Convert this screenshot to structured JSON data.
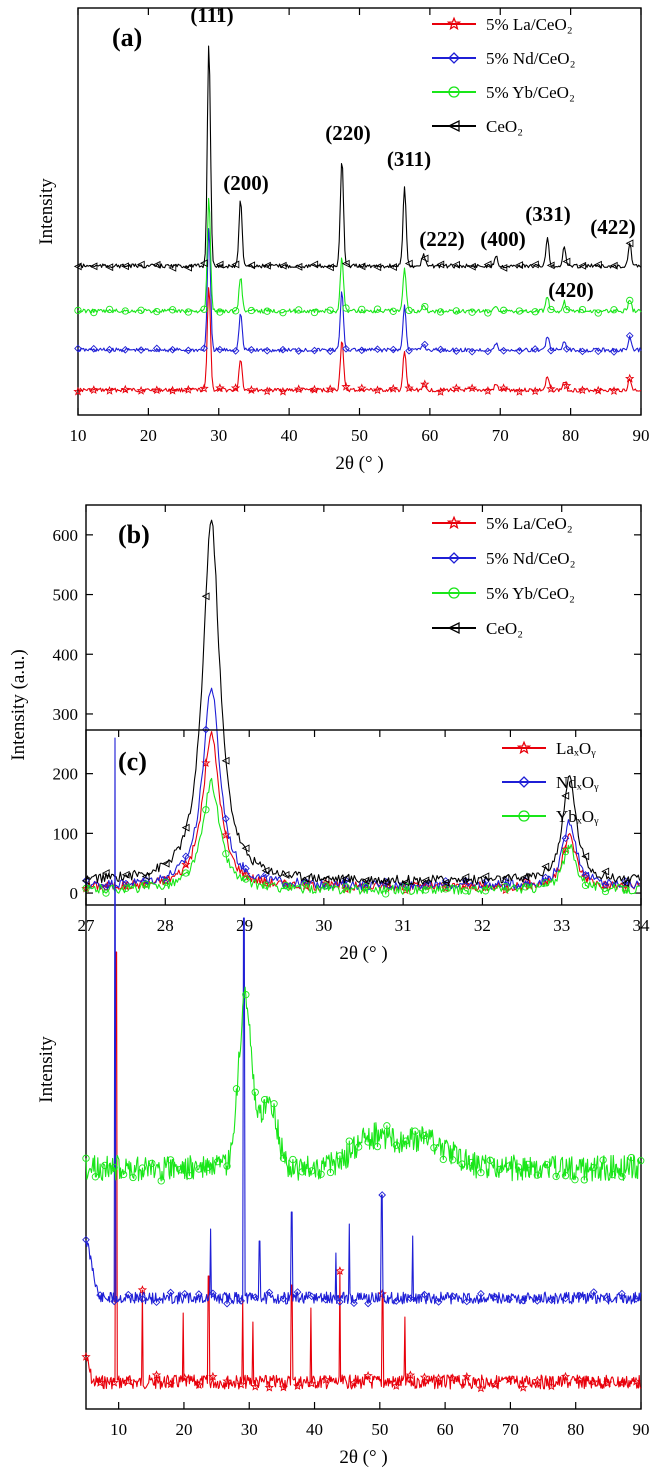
{
  "chart_data": [
    {
      "type": "line",
      "panel_label": "(a)",
      "xlabel": "2θ (° )",
      "ylabel": "Intensity",
      "xlim": [
        10,
        90
      ],
      "x_ticks": [
        10,
        20,
        30,
        40,
        50,
        60,
        70,
        80,
        90
      ],
      "y_ticks_shown": false,
      "legend_position": "top-right",
      "colors": {
        "La": "#e8000b",
        "Nd": "#1f1fd6",
        "Yb": "#19e619",
        "CeO2": "#000000"
      },
      "series": [
        {
          "name": "5% La/CeO₂",
          "marker": "star",
          "offset": 0.08,
          "scale": 0.26
        },
        {
          "name": "5% Nd/CeO₂",
          "marker": "diamond",
          "offset": 0.21,
          "scale": 0.3
        },
        {
          "name": "5% Yb/CeO₂",
          "marker": "circle",
          "offset": 0.34,
          "scale": 0.28
        },
        {
          "name": "CeO₂",
          "marker": "triangle-left",
          "offset": 0.47,
          "scale": 0.55
        }
      ],
      "peaks": [
        {
          "label": "(111)",
          "x": 28.6,
          "h": 1.0
        },
        {
          "label": "(200)",
          "x": 33.1,
          "h": 0.3
        },
        {
          "label": "(220)",
          "x": 47.5,
          "h": 0.48
        },
        {
          "label": "(311)",
          "x": 56.4,
          "h": 0.36
        },
        {
          "label": "(222)",
          "x": 59.1,
          "h": 0.05
        },
        {
          "label": "(400)",
          "x": 69.4,
          "h": 0.05
        },
        {
          "label": "(331)",
          "x": 76.7,
          "h": 0.12
        },
        {
          "label": "(420)",
          "x": 79.1,
          "h": 0.08
        },
        {
          "label": "(422)",
          "x": 88.4,
          "h": 0.1
        }
      ]
    },
    {
      "type": "line",
      "panel_label": "(b)",
      "xlabel": "2θ (° )",
      "ylabel": "Intensity (a.u.)",
      "xlim": [
        27,
        34
      ],
      "ylim": [
        -20,
        650
      ],
      "x_ticks": [
        27,
        28,
        29,
        30,
        31,
        32,
        33,
        34
      ],
      "y_ticks": [
        0,
        100,
        200,
        300,
        400,
        500,
        600
      ],
      "legend_position": "top-right",
      "colors": {
        "La": "#e8000b",
        "Nd": "#1f1fd6",
        "Yb": "#19e619",
        "CeO2": "#000000"
      },
      "series": [
        {
          "name": "5% La/CeO₂",
          "marker": "star",
          "peak_28_6": 265,
          "peak_33_1": 90,
          "baseline": 10
        },
        {
          "name": "5% Nd/CeO₂",
          "marker": "diamond",
          "peak_28_6": 345,
          "peak_33_1": 115,
          "baseline": 12
        },
        {
          "name": "5% Yb/CeO₂",
          "marker": "circle",
          "peak_28_6": 185,
          "peak_33_1": 75,
          "baseline": 5
        },
        {
          "name": "CeO₂",
          "marker": "triangle-left",
          "peak_28_6": 625,
          "peak_33_1": 185,
          "baseline": 20
        }
      ]
    },
    {
      "type": "line",
      "panel_label": "(c)",
      "xlabel": "2θ (° )",
      "ylabel": "Intensity",
      "xlim": [
        5,
        90
      ],
      "x_ticks": [
        10,
        20,
        30,
        40,
        50,
        60,
        70,
        80,
        90
      ],
      "y_ticks_shown": false,
      "legend_position": "top-right",
      "colors": {
        "La": "#e8000b",
        "Nd": "#1f1fd6",
        "Yb": "#19e619"
      },
      "series": [
        {
          "name": "LaₓOᵧ",
          "marker": "star",
          "peaks_x": [
            9.6,
            13.6,
            19.9,
            23.8,
            29.0,
            30.6,
            36.5,
            39.4,
            43.9,
            50.4,
            53.8
          ]
        },
        {
          "name": "NdₓOᵧ",
          "marker": "diamond",
          "peaks_x": [
            9.4,
            24.1,
            29.2,
            31.6,
            36.5,
            43.3,
            45.3,
            50.3,
            55.0
          ]
        },
        {
          "name": "YbₓOᵧ",
          "marker": "circle",
          "broad_peaks_x": [
            29.4,
            33.0,
            49.0,
            57.0
          ]
        }
      ]
    }
  ]
}
